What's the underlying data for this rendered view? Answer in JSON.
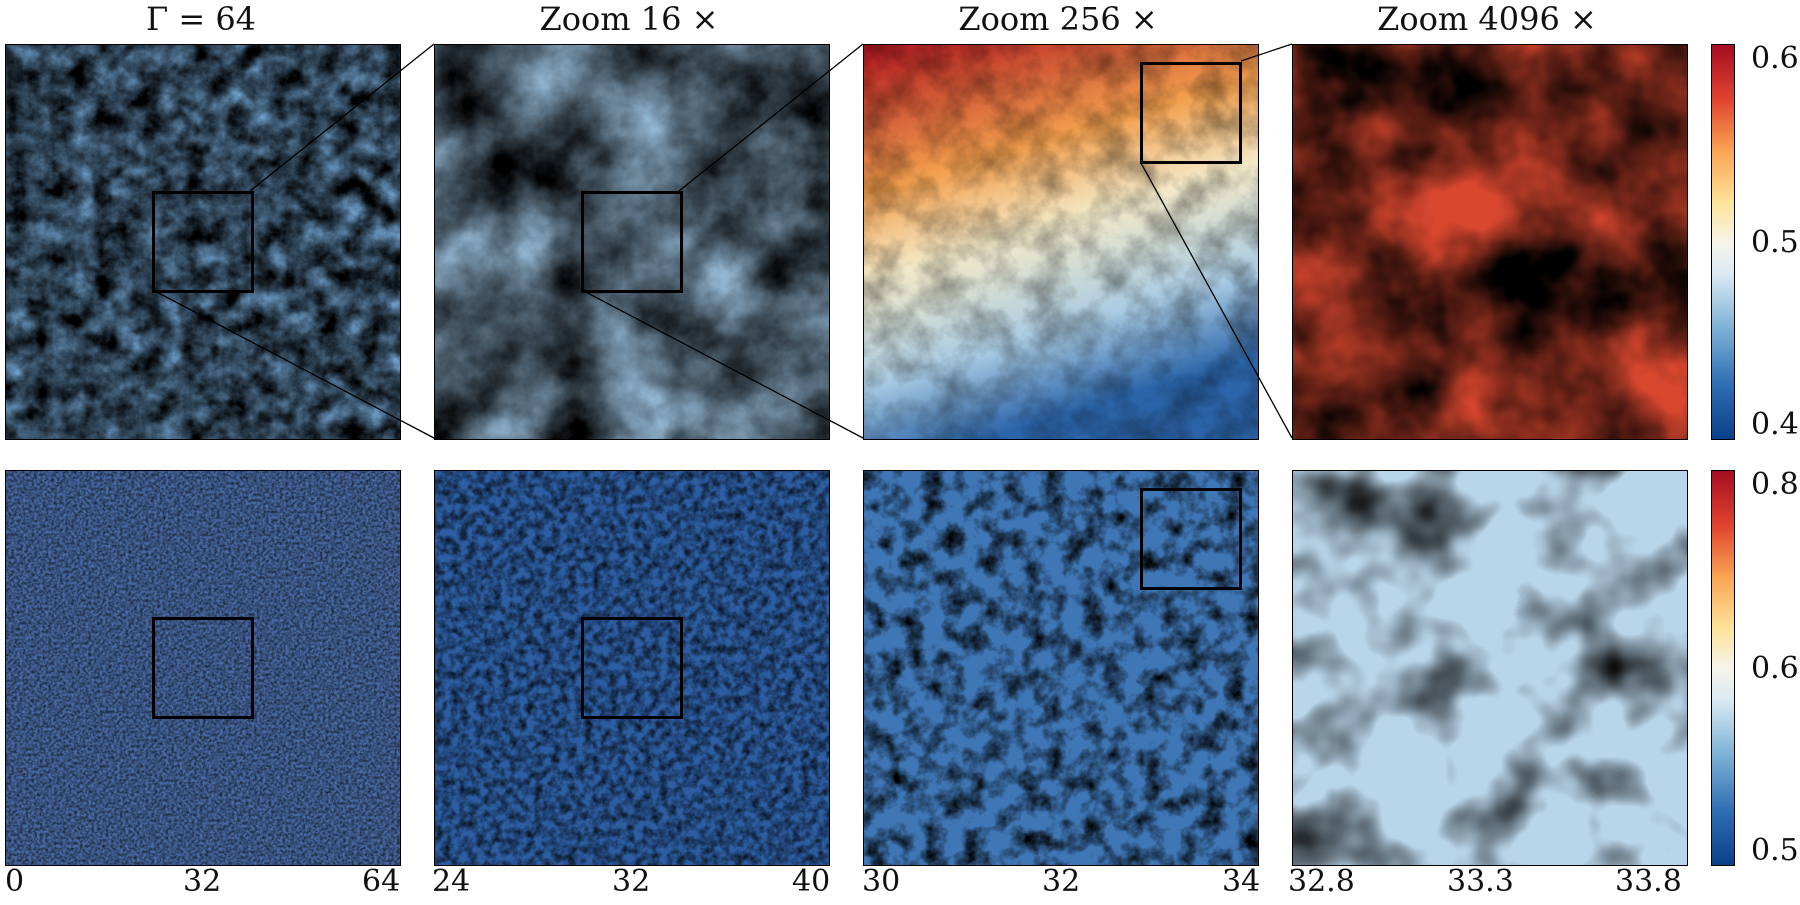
{
  "titles": [
    "Γ = 64",
    "Zoom 16 ×",
    "Zoom 256 ×",
    "Zoom 4096 ×"
  ],
  "top_colorbar": {
    "ticks": [
      "0.60",
      "0.50",
      "0.40"
    ]
  },
  "bottom_colorbar": {
    "ticks": [
      "0.80",
      "0.65",
      "0.50"
    ]
  },
  "x_ticks": [
    [
      "0",
      "32",
      "64"
    ],
    [
      "24",
      "32",
      "40"
    ],
    [
      "30",
      "32",
      "34"
    ],
    [
      "32.8",
      "33.3",
      "33.8"
    ]
  ],
  "colors": {
    "low": "#0a3f8a",
    "mid": "#f7f4ea",
    "high": "#a50c22",
    "box": "#000000"
  }
}
